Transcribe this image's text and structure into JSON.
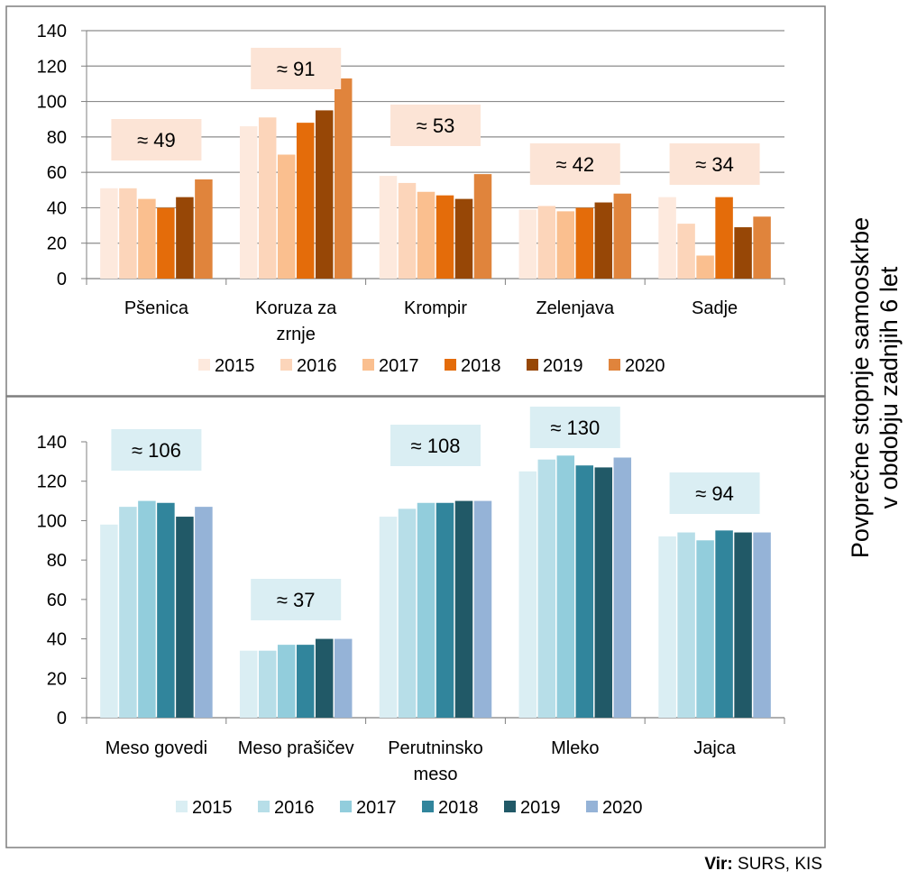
{
  "side_title": {
    "line1": "Povprečne stopnje samooskrbe",
    "line2": "v obdobju zadnjih 6 let"
  },
  "source": {
    "label": "Vir:",
    "text": "SURS, KIS"
  },
  "chart_data": [
    {
      "type": "bar",
      "ylim": [
        0,
        140
      ],
      "yticks": [
        0,
        20,
        40,
        60,
        80,
        100,
        120,
        140
      ],
      "grid": true,
      "legend_position": "bottom",
      "categories": [
        [
          "Pšenica"
        ],
        [
          "Koruza za",
          "zrnje"
        ],
        [
          "Krompir"
        ],
        [
          "Zelenjava"
        ],
        [
          "Sadje"
        ]
      ],
      "series": [
        {
          "name": "2015",
          "color": "#FDE9DD",
          "values": [
            51,
            86,
            58,
            39,
            46
          ]
        },
        {
          "name": "2016",
          "color": "#FCD5BA",
          "values": [
            51,
            91,
            54,
            41,
            31
          ]
        },
        {
          "name": "2017",
          "color": "#FABF8F",
          "values": [
            45,
            70,
            49,
            38,
            13
          ]
        },
        {
          "name": "2018",
          "color": "#E46C0A",
          "values": [
            40,
            88,
            47,
            40,
            46
          ]
        },
        {
          "name": "2019",
          "color": "#974706",
          "values": [
            46,
            95,
            45,
            43,
            29
          ]
        },
        {
          "name": "2020",
          "color": "#E0843C",
          "values": [
            56,
            113,
            59,
            48,
            35
          ]
        }
      ],
      "annotations": [
        "≈ 49",
        "≈ 91",
        "≈ 53",
        "≈ 42",
        "≈ 34"
      ],
      "annotation_color": "#FCE4D6"
    },
    {
      "type": "bar",
      "ylim": [
        0,
        140
      ],
      "yticks": [
        0,
        20,
        40,
        60,
        80,
        100,
        120,
        140
      ],
      "grid": false,
      "legend_position": "bottom",
      "categories": [
        [
          "Meso govedi"
        ],
        [
          "Meso prašičev"
        ],
        [
          "Perutninsko",
          "meso"
        ],
        [
          "Mleko"
        ],
        [
          "Jajca"
        ]
      ],
      "series": [
        {
          "name": "2015",
          "color": "#DAEEF3",
          "values": [
            98,
            34,
            102,
            125,
            92
          ]
        },
        {
          "name": "2016",
          "color": "#B7DEE8",
          "values": [
            107,
            34,
            106,
            131,
            94
          ]
        },
        {
          "name": "2017",
          "color": "#92CDDC",
          "values": [
            110,
            37,
            109,
            133,
            90
          ]
        },
        {
          "name": "2018",
          "color": "#31859C",
          "values": [
            109,
            37,
            109,
            128,
            95
          ]
        },
        {
          "name": "2019",
          "color": "#215967",
          "values": [
            102,
            40,
            110,
            127,
            94
          ]
        },
        {
          "name": "2020",
          "color": "#95B3D7",
          "values": [
            107,
            40,
            110,
            132,
            94
          ]
        }
      ],
      "annotations": [
        "≈ 106",
        "≈ 37",
        "≈ 108",
        "≈ 130",
        "≈ 94"
      ],
      "annotation_color": "#DAEEF3"
    }
  ]
}
